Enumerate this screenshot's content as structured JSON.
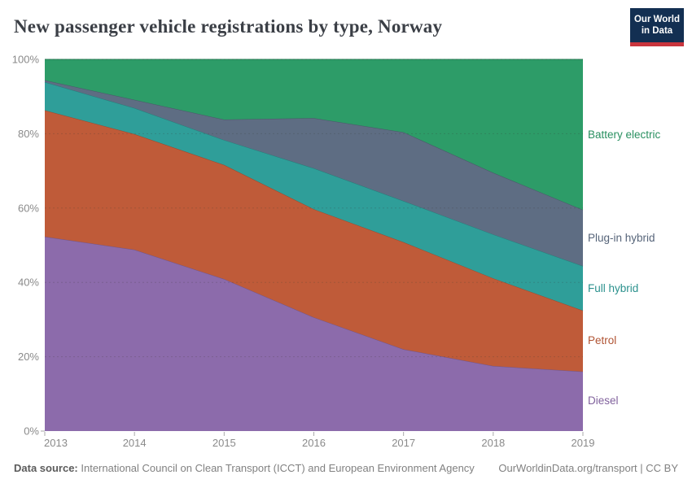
{
  "header": {
    "title": "New passenger vehicle registrations by type, Norway",
    "logo": {
      "line1": "Our World",
      "line2": "in Data"
    }
  },
  "footer": {
    "source_label": "Data source:",
    "source_text": " International Council on Clean Transport (ICCT) and European Environment Agency",
    "credit": "OurWorldinData.org/transport | CC BY"
  },
  "colors": {
    "background": "#ffffff",
    "title_text": "#3b3f46",
    "axis_text": "#8a8a8a",
    "gridline": "#3c3c3c",
    "logo_navy": "#132f52",
    "logo_red": "#c9353d"
  },
  "chart_data": {
    "type": "area",
    "stacked": true,
    "title": "New passenger vehicle registrations by type, Norway",
    "x": [
      2013,
      2014,
      2015,
      2016,
      2017,
      2018,
      2019
    ],
    "x_tick_labels": [
      "2013",
      "2014",
      "2015",
      "2016",
      "2017",
      "2018",
      "2019"
    ],
    "ylim": [
      0,
      100
    ],
    "y_ticks": [
      0,
      20,
      40,
      60,
      80,
      100
    ],
    "y_tick_labels": [
      "0%",
      "20%",
      "40%",
      "60%",
      "80%",
      "100%"
    ],
    "units": "%",
    "grid": true,
    "legend_position": "right",
    "series": [
      {
        "name": "Diesel",
        "color": "#8c6bab",
        "values": [
          52.3,
          48.8,
          40.9,
          30.6,
          22.0,
          17.5,
          16.0
        ]
      },
      {
        "name": "Petrol",
        "color": "#bf5b39",
        "values": [
          34.0,
          31.1,
          30.7,
          29.1,
          28.8,
          23.6,
          16.4
        ]
      },
      {
        "name": "Full hybrid",
        "color": "#2f9e99",
        "values": [
          7.6,
          7.0,
          6.7,
          11.0,
          11.1,
          11.8,
          12.0
        ]
      },
      {
        "name": "Plug-in hybrid",
        "color": "#5e6d83",
        "values": [
          0.5,
          2.2,
          5.5,
          13.5,
          18.5,
          16.6,
          15.1
        ]
      },
      {
        "name": "Battery electric",
        "color": "#2d9c68",
        "values": [
          5.6,
          10.9,
          16.2,
          15.8,
          19.6,
          30.5,
          40.5
        ]
      }
    ]
  }
}
